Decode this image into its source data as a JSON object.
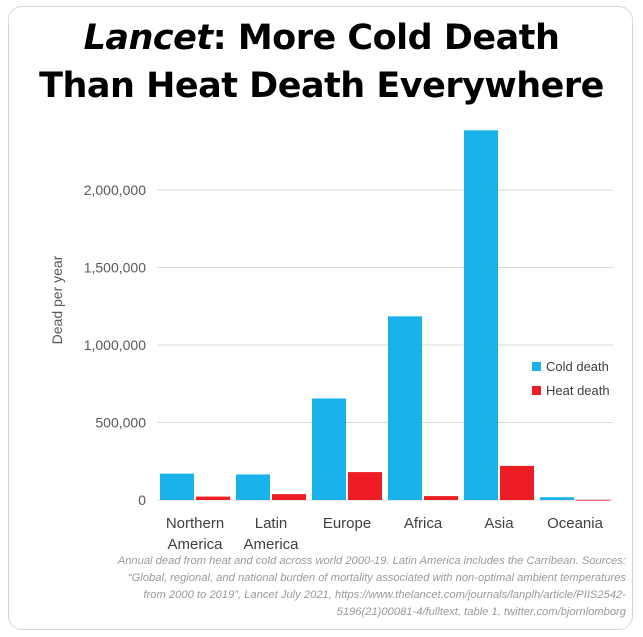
{
  "title": {
    "italic_part": "Lancet",
    "rest_line1": ": More Cold Death",
    "line2": "Than Heat Death Everywhere"
  },
  "chart_data": {
    "type": "bar",
    "categories": [
      "Northern America",
      "Latin America",
      "Europe",
      "Africa",
      "Asia",
      "Oceania"
    ],
    "category_lines": [
      [
        "Northern",
        "America"
      ],
      [
        "Latin",
        "America"
      ],
      [
        "Europe"
      ],
      [
        "Africa"
      ],
      [
        "Asia"
      ],
      [
        "Oceania"
      ]
    ],
    "series": [
      {
        "name": "Cold death",
        "color": "#1ab2ea",
        "values": [
          170000,
          165000,
          655000,
          1185000,
          2385000,
          18000
        ]
      },
      {
        "name": "Heat death",
        "color": "#ee1c24",
        "values": [
          22000,
          38000,
          180000,
          25000,
          220000,
          1000
        ]
      }
    ],
    "ylabel": "Dead per year",
    "xlabel": "",
    "ylim": [
      0,
      2400000
    ],
    "yticks": [
      0,
      500000,
      1000000,
      1500000,
      2000000
    ],
    "ytick_labels": [
      "0",
      "500,000",
      "1,000,000",
      "1,500,000",
      "2,000,000"
    ],
    "grid": true,
    "legend_position": "right"
  },
  "caption": [
    "Annual dead from heat and cold across world 2000-19. Latin America includes the Carribean. Sources:",
    "“Global, regional, and national burden of mortality associated with non-optimal ambient temperatures",
    "from 2000 to 2019”, Lancet July 2021, https://www.thelancet.com/journals/lanplh/article/PIIS2542-",
    "5196(21)00081-4/fulltext, table 1, twitter.com/bjornlomborg"
  ]
}
